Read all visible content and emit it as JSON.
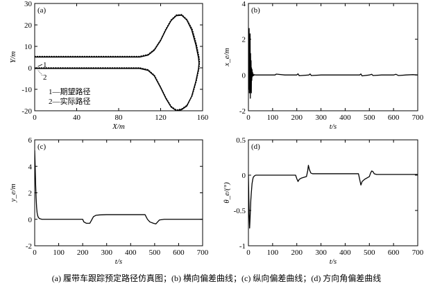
{
  "caption": "(a) 履带车跟踪预定路径仿真图；(b) 横向偏差曲线；(c) 纵向偏差曲线；(d) 方向角偏差曲线",
  "chart_data": [
    {
      "id": "a",
      "type": "line",
      "panel_label": "(a)",
      "xlabel": "X/m",
      "ylabel": "Y/m",
      "xlim": [
        0,
        160
      ],
      "ylim": [
        -20,
        30
      ],
      "xticks": [
        0,
        40,
        80,
        120,
        160
      ],
      "yticks": [
        -20,
        -10,
        0,
        10,
        20,
        30
      ],
      "legend": [
        "1—期望路径",
        "2—实际路径"
      ],
      "curve_labels": [
        "1",
        "2"
      ],
      "series": [
        {
          "name": "1—期望路径",
          "style": "dotted",
          "x": [
            0,
            100,
            108,
            114,
            120,
            125,
            130,
            135,
            140,
            145,
            150,
            154,
            156.5,
            157,
            156.5,
            154,
            150,
            145,
            140,
            135,
            130,
            125,
            120,
            114,
            108,
            100,
            0
          ],
          "y": [
            5.3,
            5.3,
            6.2,
            8.5,
            13,
            18,
            22.3,
            24.6,
            24.8,
            22.5,
            18,
            11,
            5,
            2.5,
            -0.2,
            -6,
            -13,
            -17.5,
            -19.2,
            -19.7,
            -18,
            -14,
            -9,
            -3.5,
            -0.9,
            0,
            0
          ]
        },
        {
          "name": "2—实际路径",
          "style": "solid",
          "x": [
            0,
            100,
            108,
            114,
            120,
            125,
            130,
            135,
            140,
            145,
            149.5,
            153.5,
            156,
            156.5,
            156,
            153.5,
            149.5,
            145,
            140,
            135,
            130,
            125,
            120,
            114,
            108,
            100,
            0
          ],
          "y": [
            5.0,
            5.0,
            5.9,
            8.2,
            12.7,
            17.7,
            22,
            24.3,
            24.5,
            22.2,
            17.7,
            10.7,
            4.7,
            2.2,
            -0.5,
            -6.3,
            -13.3,
            -17.8,
            -19.5,
            -20,
            -18.3,
            -14.3,
            -9.3,
            -3.8,
            -1.2,
            -0.3,
            -0.3
          ]
        }
      ]
    },
    {
      "id": "b",
      "type": "line",
      "panel_label": "(b)",
      "xlabel": "t/s",
      "ylabel": "x_e/m",
      "xlim": [
        0,
        700
      ],
      "ylim": [
        -2,
        4
      ],
      "xticks": [
        0,
        100,
        200,
        300,
        400,
        500,
        600,
        700
      ],
      "yticks": [
        -2,
        0,
        2,
        4
      ],
      "series": [
        {
          "x": [
            0,
            1,
            2,
            3,
            4,
            5,
            6,
            7,
            8,
            9,
            10,
            11,
            12,
            13,
            14,
            15,
            16,
            17,
            18,
            20,
            22,
            25,
            30,
            40,
            60,
            100,
            110,
            115,
            150,
            200,
            205,
            210,
            250,
            255,
            260,
            300,
            400,
            460,
            465,
            470,
            500,
            510,
            515,
            550,
            600,
            610,
            620,
            650,
            680,
            700
          ],
          "y": [
            0,
            1.5,
            -0.8,
            2.6,
            -1.0,
            1.8,
            -0.5,
            2.3,
            -1.3,
            1.2,
            -0.6,
            0.8,
            -1.0,
            0.4,
            -0.3,
            0.3,
            -0.1,
            0.15,
            -0.05,
            0.05,
            -0.03,
            0.02,
            0,
            0,
            0,
            0,
            0,
            0.05,
            0,
            0,
            0.07,
            -0.04,
            0,
            0.06,
            -0.03,
            0,
            0,
            0,
            0.06,
            -0.05,
            0,
            0.04,
            -0.03,
            0,
            0,
            0.04,
            -0.03,
            0,
            0.02,
            0
          ]
        }
      ]
    },
    {
      "id": "c",
      "type": "line",
      "panel_label": "(c)",
      "xlabel": "t/s",
      "ylabel": "y_e/m",
      "xlim": [
        0,
        700
      ],
      "ylim": [
        -2,
        6
      ],
      "xticks": [
        0,
        100,
        200,
        300,
        400,
        500,
        600,
        700
      ],
      "yticks": [
        -2,
        0,
        2,
        4,
        6
      ],
      "series": [
        {
          "x": [
            0,
            2,
            4,
            6,
            8,
            10,
            12,
            15,
            20,
            30,
            50,
            200,
            205,
            215,
            230,
            245,
            255,
            270,
            300,
            400,
            460,
            470,
            480,
            495,
            505,
            520,
            540,
            600,
            700
          ],
          "y": [
            5.2,
            4.0,
            2.6,
            1.6,
            0.9,
            0.5,
            0.3,
            0.15,
            0.05,
            0,
            0,
            0,
            -0.2,
            -0.3,
            -0.3,
            0.2,
            0.3,
            0.33,
            0.35,
            0.35,
            0.35,
            0.0,
            -0.2,
            -0.3,
            -0.35,
            -0.05,
            0,
            0,
            0
          ]
        }
      ]
    },
    {
      "id": "d",
      "type": "line",
      "panel_label": "(d)",
      "xlabel": "t/s",
      "ylabel": "θ_e/(°)",
      "xlim": [
        0,
        700
      ],
      "ylim": [
        -1.0,
        0.5
      ],
      "xticks": [
        0,
        100,
        200,
        300,
        400,
        500,
        600,
        700
      ],
      "yticks": [
        -1.0,
        -0.5,
        0,
        0.5
      ],
      "series": [
        {
          "x": [
            0,
            3,
            5,
            7,
            10,
            12,
            15,
            18,
            20,
            25,
            30,
            40,
            60,
            100,
            195,
            200,
            205,
            210,
            220,
            240,
            245,
            248,
            252,
            258,
            265,
            280,
            300,
            400,
            455,
            460,
            465,
            470,
            480,
            500,
            505,
            510,
            515,
            520,
            530,
            560,
            600,
            700
          ],
          "y": [
            0,
            -0.55,
            -0.75,
            -0.6,
            -0.35,
            -0.25,
            -0.12,
            -0.06,
            -0.03,
            -0.01,
            0,
            0,
            0,
            0,
            0,
            -0.05,
            -0.09,
            -0.06,
            -0.04,
            -0.02,
            0.06,
            0.14,
            0.08,
            0.03,
            0.02,
            0.02,
            0.02,
            0.02,
            0.02,
            -0.06,
            -0.14,
            -0.09,
            -0.06,
            -0.02,
            0.03,
            0.06,
            0.05,
            0.02,
            0.01,
            0.01,
            0.01,
            0.01
          ]
        }
      ]
    }
  ]
}
